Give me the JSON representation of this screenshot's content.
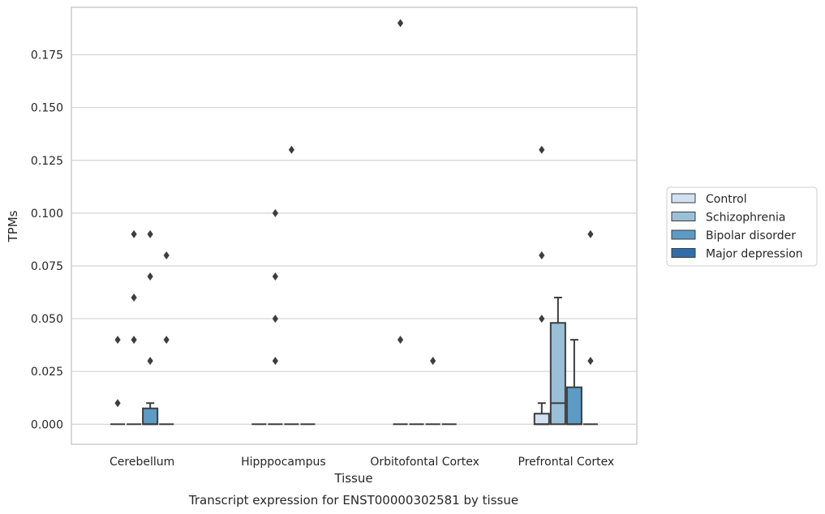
{
  "chart_data": {
    "type": "box",
    "xlabel": "Tissue",
    "ylabel": "TPMs",
    "caption": "Transcript expression for ENST00000302581 by tissue",
    "categories": [
      "Cerebellum",
      "Hipppocampus",
      "Orbitofontal Cortex",
      "Prefrontal Cortex"
    ],
    "ylim": [
      -0.0095,
      0.1975
    ],
    "yticks": [
      0.0,
      0.025,
      0.05,
      0.075,
      0.1,
      0.125,
      0.15,
      0.175
    ],
    "ytick_labels": [
      "0.000",
      "0.025",
      "0.050",
      "0.075",
      "0.100",
      "0.125",
      "0.150",
      "0.175"
    ],
    "grid": true,
    "legend_position": "right",
    "series": [
      {
        "name": "Control",
        "color": "#d0e1f2",
        "boxes": [
          {
            "q1": 0,
            "median": 0,
            "q3": 0,
            "whislo": 0,
            "whishi": 0,
            "fliers": [
              0.01,
              0.04
            ]
          },
          {
            "q1": 0,
            "median": 0,
            "q3": 0,
            "whislo": 0,
            "whishi": 0,
            "fliers": []
          },
          {
            "q1": 0,
            "median": 0,
            "q3": 0,
            "whislo": 0,
            "whishi": 0,
            "fliers": [
              0.04,
              0.19
            ]
          },
          {
            "q1": 0,
            "median": 0,
            "q3": 0.005,
            "whislo": 0,
            "whishi": 0.01,
            "fliers": [
              0.05,
              0.08,
              0.13
            ]
          }
        ]
      },
      {
        "name": "Schizophrenia",
        "color": "#9ac0d8",
        "boxes": [
          {
            "q1": 0,
            "median": 0,
            "q3": 0,
            "whislo": 0,
            "whishi": 0,
            "fliers": [
              0.04,
              0.06,
              0.09
            ]
          },
          {
            "q1": 0,
            "median": 0,
            "q3": 0,
            "whislo": 0,
            "whishi": 0,
            "fliers": [
              0.03,
              0.05,
              0.07,
              0.1
            ]
          },
          {
            "q1": 0,
            "median": 0,
            "q3": 0,
            "whislo": 0,
            "whishi": 0,
            "fliers": []
          },
          {
            "q1": 0,
            "median": 0.01,
            "q3": 0.048,
            "whislo": 0,
            "whishi": 0.06,
            "fliers": []
          }
        ]
      },
      {
        "name": "Bipolar disorder",
        "color": "#5b9bc6",
        "boxes": [
          {
            "q1": 0,
            "median": 0,
            "q3": 0.0075,
            "whislo": 0,
            "whishi": 0.01,
            "fliers": [
              0.03,
              0.07,
              0.09
            ]
          },
          {
            "q1": 0,
            "median": 0,
            "q3": 0,
            "whislo": 0,
            "whishi": 0,
            "fliers": [
              0.13
            ]
          },
          {
            "q1": 0,
            "median": 0,
            "q3": 0,
            "whislo": 0,
            "whishi": 0,
            "fliers": [
              0.03
            ]
          },
          {
            "q1": 0,
            "median": 0,
            "q3": 0.0175,
            "whislo": 0,
            "whishi": 0.04,
            "fliers": []
          }
        ]
      },
      {
        "name": "Major depression",
        "color": "#2f6ea8",
        "boxes": [
          {
            "q1": 0,
            "median": 0,
            "q3": 0,
            "whislo": 0,
            "whishi": 0,
            "fliers": [
              0.04,
              0.08
            ]
          },
          {
            "q1": 0,
            "median": 0,
            "q3": 0,
            "whislo": 0,
            "whishi": 0,
            "fliers": []
          },
          {
            "q1": 0,
            "median": 0,
            "q3": 0,
            "whislo": 0,
            "whishi": 0,
            "fliers": []
          },
          {
            "q1": 0,
            "median": 0,
            "q3": 0,
            "whislo": 0,
            "whishi": 0,
            "fliers": [
              0.03,
              0.09
            ]
          }
        ]
      }
    ]
  }
}
